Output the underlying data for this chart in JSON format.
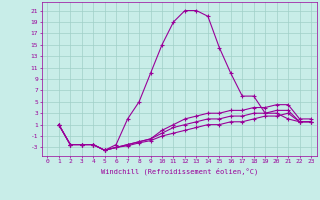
{
  "xlabel": "Windchill (Refroidissement éolien,°C)",
  "background_color": "#c8ede8",
  "grid_color": "#a0d0c8",
  "line_color": "#990099",
  "xlim": [
    -0.5,
    23.5
  ],
  "ylim": [
    -4.5,
    22.5
  ],
  "xticks": [
    0,
    1,
    2,
    3,
    4,
    5,
    6,
    7,
    8,
    9,
    10,
    11,
    12,
    13,
    14,
    15,
    16,
    17,
    18,
    19,
    20,
    21,
    22,
    23
  ],
  "yticks": [
    -3,
    -1,
    1,
    3,
    5,
    7,
    9,
    11,
    13,
    15,
    17,
    19,
    21
  ],
  "line1_x": [
    1,
    2,
    3,
    4,
    5,
    6,
    7,
    8,
    9,
    10,
    11,
    12,
    13,
    14,
    15,
    16,
    17,
    18,
    19,
    20,
    21,
    22,
    23
  ],
  "line1_y": [
    1,
    -2.5,
    -2.5,
    -2.5,
    -3.5,
    -2.5,
    2,
    5,
    10,
    15,
    19,
    21,
    21,
    20,
    14.5,
    10,
    6,
    6,
    3,
    3,
    2,
    1.5,
    1.5
  ],
  "line2_x": [
    1,
    2,
    3,
    4,
    5,
    6,
    7,
    8,
    9,
    10,
    11,
    12,
    13,
    14,
    15,
    16,
    17,
    18,
    19,
    20,
    21,
    22,
    23
  ],
  "line2_y": [
    1,
    -2.5,
    -2.5,
    -2.5,
    -3.5,
    -3,
    -2.5,
    -2,
    -1.5,
    0,
    1,
    2,
    2.5,
    3,
    3,
    3.5,
    3.5,
    4,
    4,
    4.5,
    4.5,
    2,
    2
  ],
  "line3_x": [
    1,
    2,
    3,
    4,
    5,
    6,
    7,
    8,
    9,
    10,
    11,
    12,
    13,
    14,
    15,
    16,
    17,
    18,
    19,
    20,
    21,
    22,
    23
  ],
  "line3_y": [
    1,
    -2.5,
    -2.5,
    -2.5,
    -3.5,
    -3,
    -2.5,
    -2,
    -1.5,
    -0.5,
    0.5,
    1,
    1.5,
    2,
    2,
    2.5,
    2.5,
    3,
    3,
    3.5,
    3.5,
    1.5,
    1.5
  ],
  "line4_x": [
    1,
    2,
    3,
    4,
    5,
    6,
    7,
    8,
    9,
    10,
    11,
    12,
    13,
    14,
    15,
    16,
    17,
    18,
    19,
    20,
    21,
    22,
    23
  ],
  "line4_y": [
    1,
    -2.5,
    -2.5,
    -2.5,
    -3.5,
    -3,
    -2.7,
    -2.2,
    -1.8,
    -1,
    -0.5,
    0,
    0.5,
    1,
    1,
    1.5,
    1.5,
    2,
    2.5,
    2.5,
    3,
    1.5,
    1.5
  ]
}
